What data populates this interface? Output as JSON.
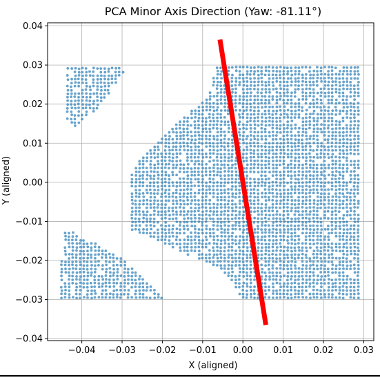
{
  "chart_data": {
    "type": "scatter",
    "title": "PCA Minor Axis Direction (Yaw: -81.11°)",
    "xlabel": "X (aligned)",
    "ylabel": "Y (aligned)",
    "xlim": [
      -0.0485,
      0.0325
    ],
    "ylim": [
      -0.0405,
      0.0408
    ],
    "xticks": [
      -0.04,
      -0.03,
      -0.02,
      -0.01,
      0.0,
      0.01,
      0.02,
      0.03
    ],
    "xtick_labels": [
      "−0.04",
      "−0.03",
      "−0.02",
      "−0.01",
      "0.00",
      "0.01",
      "0.02",
      "0.03"
    ],
    "yticks": [
      -0.04,
      -0.03,
      -0.02,
      -0.01,
      0.0,
      0.01,
      0.02,
      0.03,
      0.04
    ],
    "ytick_labels": [
      "−0.04",
      "−0.03",
      "−0.02",
      "−0.01",
      "0.00",
      "0.01",
      "0.02",
      "0.03",
      "0.04"
    ],
    "grid": true,
    "point_spacing": 0.00092,
    "series": [
      {
        "color": "#1f77b4",
        "regions": [
          {
            "kind": "polygon",
            "fill_fraction": 0.93,
            "vertices": [
              [
                -0.0065,
                0.0295
              ],
              [
                0.029,
                0.0295
              ],
              [
                0.029,
                -0.0295
              ],
              [
                -0.0005,
                -0.0295
              ],
              [
                -0.003,
                -0.025
              ],
              [
                -0.007,
                -0.0215
              ],
              [
                -0.013,
                -0.019
              ],
              [
                -0.019,
                -0.016
              ],
              [
                -0.022,
                -0.0145
              ],
              [
                -0.0275,
                -0.0125
              ],
              [
                -0.0275,
                0.002
              ],
              [
                -0.026,
                0.0055
              ],
              [
                -0.0215,
                0.0105
              ],
              [
                -0.015,
                0.0165
              ],
              [
                -0.0085,
                0.022
              ]
            ]
          },
          {
            "kind": "polygon",
            "fill_fraction": 0.92,
            "vertices": [
              [
                -0.0415,
                0.0295
              ],
              [
                -0.029,
                0.0295
              ],
              [
                -0.032,
                0.024
              ],
              [
                -0.036,
                0.019
              ],
              [
                -0.042,
                0.0135
              ],
              [
                -0.0435,
                0.016
              ],
              [
                -0.0435,
                0.0295
              ]
            ]
          },
          {
            "kind": "polygon",
            "fill_fraction": 0.92,
            "vertices": [
              [
                -0.044,
                -0.0115
              ],
              [
                -0.0415,
                -0.0135
              ],
              [
                -0.036,
                -0.016
              ],
              [
                -0.03,
                -0.0195
              ],
              [
                -0.0255,
                -0.024
              ],
              [
                -0.0215,
                -0.028
              ],
              [
                -0.02,
                -0.0295
              ],
              [
                -0.045,
                -0.0295
              ],
              [
                -0.045,
                -0.0195
              ]
            ]
          }
        ]
      }
    ],
    "minor_axis_line": {
      "color": "#ff0000",
      "x": [
        -0.0057,
        0.0057
      ],
      "y": [
        0.0365,
        -0.0365
      ]
    }
  }
}
